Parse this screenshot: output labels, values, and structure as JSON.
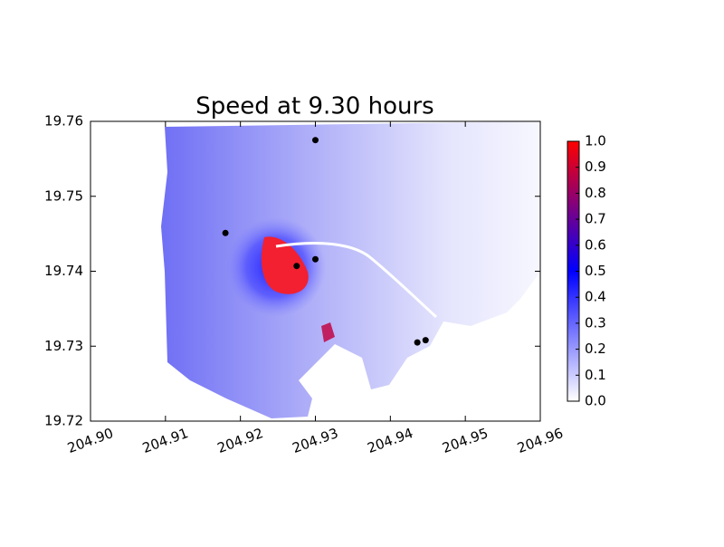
{
  "chart_data": {
    "type": "scatter",
    "title": "Speed at 9.30 hours",
    "x": [
      204.93,
      204.918,
      204.9275,
      204.93,
      204.9436,
      204.9447
    ],
    "values": [
      19.7575,
      19.7451,
      19.7407,
      19.7416,
      19.7305,
      19.7308
    ],
    "color": "#000000",
    "xlim": [
      204.9,
      204.96
    ],
    "ylim": [
      19.72,
      19.76
    ],
    "xticks": [
      {
        "value": 204.9,
        "label": "204.90"
      },
      204.91,
      204.92,
      204.93,
      204.94,
      204.95,
      204.96
    ],
    "yticks": [
      19.72,
      19.73,
      19.74,
      19.75,
      19.76
    ],
    "colorbar": {
      "lim": [
        0,
        1
      ],
      "ticks": [
        {
          "value": 0,
          "label": "0.0"
        },
        0.1,
        0.2,
        0.3,
        0.4,
        0.5,
        0.6,
        0.7,
        0.8,
        0.9,
        {
          "value": 1,
          "label": "1.0"
        }
      ],
      "colors": [
        "#ffffff",
        "#0000ff",
        "#ff0000"
      ]
    }
  }
}
